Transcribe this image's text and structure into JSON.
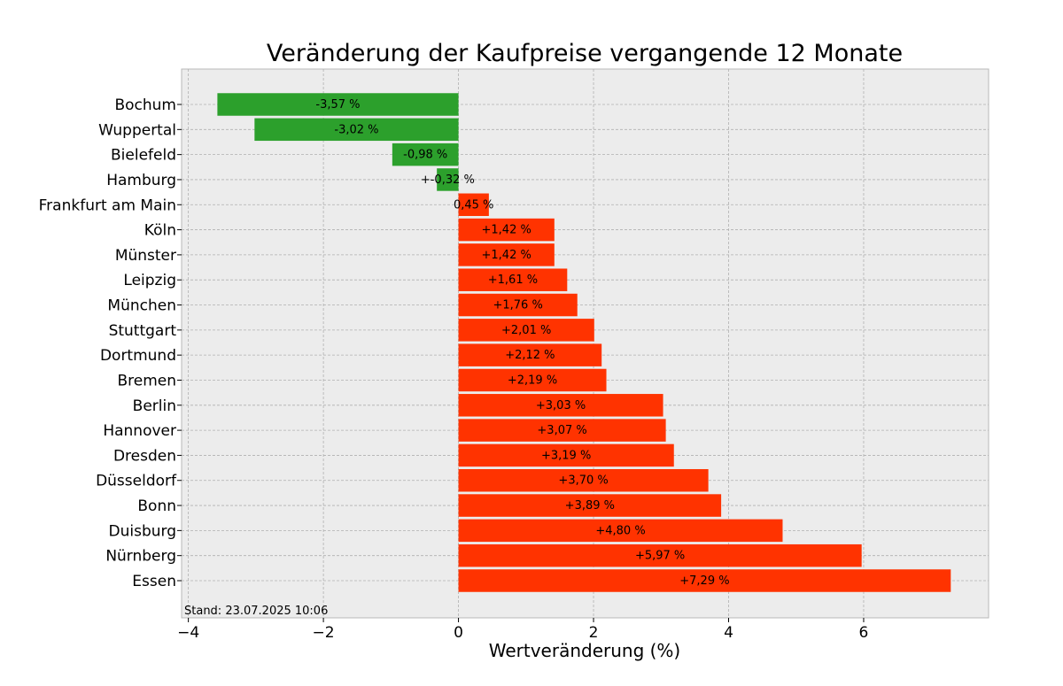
{
  "chart_data": {
    "type": "bar",
    "orientation": "horizontal",
    "title": "Veränderung der Kaufpreise vergangende 12 Monate",
    "xlabel": "Wertveränderung (%)",
    "ylabel": "",
    "xlim": [
      -4.1,
      7.85
    ],
    "xticks": [
      {
        "value": -4,
        "label": "−4"
      },
      {
        "value": -2,
        "label": "−2"
      },
      {
        "value": 0,
        "label": "0"
      },
      {
        "value": 2,
        "label": "2"
      },
      {
        "value": 4,
        "label": "4"
      },
      {
        "value": 6,
        "label": "6"
      }
    ],
    "grid": true,
    "colors": {
      "negative": "#2ca02c",
      "positive": "#ff3300",
      "background": "#ececec",
      "grid": "#b0b0b0"
    },
    "categories": [
      "Bochum",
      "Wuppertal",
      "Bielefeld",
      "Hamburg",
      "Frankfurt am Main",
      "Köln",
      "Münster",
      "Leipzig",
      "München",
      "Stuttgart",
      "Dortmund",
      "Bremen",
      "Berlin",
      "Hannover",
      "Dresden",
      "Düsseldorf",
      "Bonn",
      "Duisburg",
      "Nürnberg",
      "Essen"
    ],
    "values": [
      -3.57,
      -3.02,
      -0.98,
      -0.32,
      0.45,
      1.42,
      1.42,
      1.61,
      1.76,
      2.01,
      2.12,
      2.19,
      3.03,
      3.07,
      3.19,
      3.7,
      3.89,
      4.8,
      5.97,
      7.29
    ],
    "data_labels": [
      "-3,57 %",
      "-3,02 %",
      "-0,98 %",
      "+-0,32 %",
      "0,45 %",
      "+1,42 %",
      "+1,42 %",
      "+1,61 %",
      "+1,76 %",
      "+2,01 %",
      "+2,12 %",
      "+2,19 %",
      "+3,03 %",
      "+3,07 %",
      "+3,19 %",
      "+3,70 %",
      "+3,89 %",
      "+4,80 %",
      "+5,97 %",
      "+7,29 %"
    ],
    "annotation": "Stand: 23.07.2025 10:06"
  }
}
